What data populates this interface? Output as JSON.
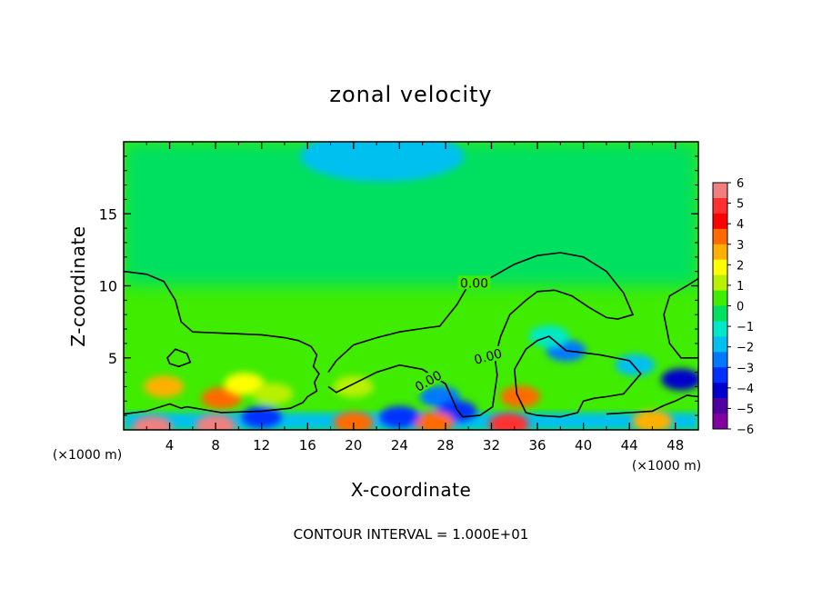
{
  "chart_data": {
    "type": "heatmap",
    "title": "zonal velocity",
    "xlabel": "X-coordinate",
    "ylabel": "Z-coordinate",
    "x_unit": "(×1000 m)",
    "xlim": [
      0,
      50
    ],
    "ylim": [
      0,
      20
    ],
    "x_ticks": [
      4,
      8,
      12,
      16,
      20,
      24,
      28,
      32,
      36,
      40,
      44,
      48
    ],
    "y_ticks": [
      5,
      10,
      15
    ],
    "footer": "CONTOUR INTERVAL = 1.000E+01",
    "contour_labels": [
      "0.00",
      "0.00",
      "0.00"
    ],
    "colorbar": {
      "labels": [
        "6",
        "5",
        "4",
        "3",
        "2",
        "1",
        "0",
        "−1",
        "−2",
        "−3",
        "−4",
        "−5",
        "−6"
      ],
      "colors": [
        "#f08080",
        "#ff3030",
        "#ff0000",
        "#ff6a00",
        "#ffb000",
        "#ffff00",
        "#b8f000",
        "#40ec00",
        "#00e060",
        "#00e8c8",
        "#00c0f0",
        "#0078ff",
        "#0030ff",
        "#0000cc",
        "#5000a0",
        "#8000a0"
      ]
    },
    "features": [
      {
        "x": 3.5,
        "z": 3.0,
        "value": 2.8
      },
      {
        "x": 8.5,
        "z": 2.2,
        "value": 3.5
      },
      {
        "x": 10.5,
        "z": 3.2,
        "value": 2.0
      },
      {
        "x": 13.0,
        "z": 2.5,
        "value": 1.5
      },
      {
        "x": 20.0,
        "z": 3.0,
        "value": 1.5
      },
      {
        "x": 27.5,
        "z": 2.3,
        "value": -2.8
      },
      {
        "x": 29.0,
        "z": 1.3,
        "value": -3.5
      },
      {
        "x": 34.5,
        "z": 2.3,
        "value": 4.0
      },
      {
        "x": 38.5,
        "z": 5.5,
        "value": -3.0
      },
      {
        "x": 37.0,
        "z": 6.5,
        "value": -1.5
      },
      {
        "x": 44.5,
        "z": 4.5,
        "value": -2.0
      },
      {
        "x": 48.5,
        "z": 3.5,
        "value": -4.0
      },
      {
        "x": 22.5,
        "z": 19.0,
        "value": -2.0
      },
      {
        "x": 33.5,
        "z": 0.4,
        "value": 5.5
      },
      {
        "x": 8.0,
        "z": 0.3,
        "value": 6.0
      },
      {
        "x": 2.5,
        "z": 0.2,
        "value": 6.0
      },
      {
        "x": 20.0,
        "z": 0.5,
        "value": 4.0
      },
      {
        "x": 27.0,
        "z": 0.5,
        "value": 4.0
      },
      {
        "x": 46.0,
        "z": 0.6,
        "value": 3.0
      },
      {
        "x": 12.0,
        "z": 0.9,
        "value": -3.5
      },
      {
        "x": 24.0,
        "z": 0.9,
        "value": -3.5
      }
    ]
  }
}
